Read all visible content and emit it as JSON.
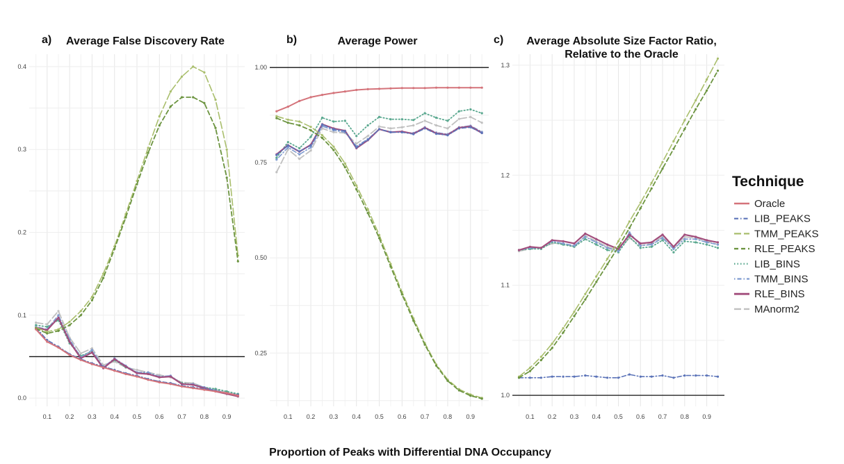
{
  "figure": {
    "x_axis_label": "Proportion of Peaks with Differential DNA Occupancy",
    "legend_title": "Technique"
  },
  "series_styles": [
    {
      "name": "Oracle",
      "color": "#d4737a",
      "dash": "solid",
      "width": 2.0
    },
    {
      "name": "LIB_PEAKS",
      "color": "#5b73b8",
      "dash": "dashdot",
      "width": 1.6
    },
    {
      "name": "TMM_PEAKS",
      "color": "#a9be6c",
      "dash": "longdash",
      "width": 1.6
    },
    {
      "name": "RLE_PEAKS",
      "color": "#6c9440",
      "dash": "dashed",
      "width": 1.8
    },
    {
      "name": "LIB_BINS",
      "color": "#5aa88f",
      "dash": "dotted",
      "width": 1.8
    },
    {
      "name": "TMM_BINS",
      "color": "#7e9ad0",
      "dash": "dotdash",
      "width": 1.6
    },
    {
      "name": "RLE_BINS",
      "color": "#a24d7c",
      "dash": "solid",
      "width": 2.2
    },
    {
      "name": "MAnorm2",
      "color": "#c0c0c0",
      "dash": "longdash",
      "width": 1.8
    }
  ],
  "chart_data": [
    {
      "type": "line",
      "panel_letter": "a)",
      "title": "Average False Discovery Rate",
      "title_lines": [
        "Average False Discovery Rate"
      ],
      "xlabel": "",
      "ylabel": "",
      "x": [
        0.05,
        0.1,
        0.15,
        0.2,
        0.25,
        0.3,
        0.35,
        0.4,
        0.45,
        0.5,
        0.55,
        0.6,
        0.65,
        0.7,
        0.75,
        0.8,
        0.85,
        0.9,
        0.95
      ],
      "xlim": [
        0.02,
        0.98
      ],
      "ylim": [
        -0.01,
        0.415
      ],
      "xticks": [
        0.1,
        0.2,
        0.3,
        0.4,
        0.5,
        0.6,
        0.7,
        0.8,
        0.9
      ],
      "yticks": [
        0.0,
        0.1,
        0.2,
        0.3,
        0.4
      ],
      "ytick_labels": [
        "0.0",
        "0.1",
        "0.2",
        "0.3",
        "0.4"
      ],
      "reference_line": 0.05,
      "grid": true,
      "series": [
        {
          "name": "Oracle",
          "values": [
            0.083,
            0.068,
            0.061,
            0.052,
            0.046,
            0.041,
            0.037,
            0.033,
            0.029,
            0.026,
            0.022,
            0.019,
            0.017,
            0.014,
            0.012,
            0.01,
            0.008,
            0.006,
            0.003
          ]
        },
        {
          "name": "LIB_PEAKS",
          "values": [
            0.085,
            0.07,
            0.062,
            0.053,
            0.047,
            0.042,
            0.038,
            0.034,
            0.03,
            0.027,
            0.023,
            0.02,
            0.018,
            0.015,
            0.013,
            0.011,
            0.009,
            0.006,
            0.004
          ]
        },
        {
          "name": "TMM_PEAKS",
          "values": [
            0.085,
            0.08,
            0.083,
            0.092,
            0.105,
            0.122,
            0.15,
            0.183,
            0.222,
            0.262,
            0.302,
            0.34,
            0.37,
            0.388,
            0.4,
            0.393,
            0.36,
            0.3,
            0.172
          ]
        },
        {
          "name": "RLE_PEAKS",
          "values": [
            0.084,
            0.078,
            0.081,
            0.088,
            0.1,
            0.118,
            0.145,
            0.18,
            0.218,
            0.258,
            0.296,
            0.329,
            0.352,
            0.363,
            0.363,
            0.356,
            0.326,
            0.266,
            0.165
          ]
        },
        {
          "name": "LIB_BINS",
          "values": [
            0.088,
            0.086,
            0.094,
            0.066,
            0.051,
            0.056,
            0.037,
            0.046,
            0.037,
            0.031,
            0.03,
            0.026,
            0.026,
            0.018,
            0.016,
            0.013,
            0.011,
            0.008,
            0.005
          ]
        },
        {
          "name": "TMM_BINS",
          "values": [
            0.086,
            0.083,
            0.1,
            0.071,
            0.049,
            0.058,
            0.037,
            0.048,
            0.039,
            0.031,
            0.031,
            0.026,
            0.027,
            0.017,
            0.017,
            0.013,
            0.009,
            0.006,
            0.003
          ]
        },
        {
          "name": "RLE_BINS",
          "values": [
            0.085,
            0.082,
            0.097,
            0.068,
            0.048,
            0.055,
            0.036,
            0.047,
            0.038,
            0.03,
            0.029,
            0.025,
            0.026,
            0.017,
            0.016,
            0.012,
            0.008,
            0.005,
            0.002
          ]
        },
        {
          "name": "MAnorm2",
          "values": [
            0.091,
            0.089,
            0.105,
            0.073,
            0.054,
            0.06,
            0.04,
            0.044,
            0.037,
            0.034,
            0.031,
            0.028,
            0.025,
            0.019,
            0.018,
            0.013,
            0.01,
            0.007,
            0.004
          ]
        }
      ]
    },
    {
      "type": "line",
      "panel_letter": "b)",
      "title": "Average Power",
      "title_lines": [
        "Average Power"
      ],
      "xlabel": "",
      "ylabel": "",
      "x": [
        0.05,
        0.1,
        0.15,
        0.2,
        0.25,
        0.3,
        0.35,
        0.4,
        0.45,
        0.5,
        0.55,
        0.6,
        0.65,
        0.7,
        0.75,
        0.8,
        0.85,
        0.9,
        0.95
      ],
      "xlim": [
        0.02,
        0.98
      ],
      "ylim": [
        0.11,
        1.035
      ],
      "xticks": [
        0.1,
        0.2,
        0.3,
        0.4,
        0.5,
        0.6,
        0.7,
        0.8,
        0.9
      ],
      "yticks": [
        0.25,
        0.5,
        0.75,
        1.0
      ],
      "ytick_labels": [
        "0.25",
        "0.50",
        "0.75",
        "1.00"
      ],
      "reference_line": 1.0,
      "grid": true,
      "series": [
        {
          "name": "Oracle",
          "values": [
            0.885,
            0.897,
            0.912,
            0.922,
            0.928,
            0.933,
            0.937,
            0.941,
            0.943,
            0.944,
            0.945,
            0.946,
            0.946,
            0.946,
            0.947,
            0.947,
            0.947,
            0.947,
            0.947
          ]
        },
        {
          "name": "LIB_PEAKS",
          "values": [
            0.77,
            0.795,
            0.78,
            0.795,
            0.85,
            0.838,
            0.833,
            0.79,
            0.81,
            0.838,
            0.83,
            0.83,
            0.825,
            0.84,
            0.826,
            0.822,
            0.84,
            0.843,
            0.828
          ]
        },
        {
          "name": "TMM_PEAKS",
          "values": [
            0.872,
            0.863,
            0.858,
            0.844,
            0.822,
            0.792,
            0.748,
            0.69,
            0.628,
            0.56,
            0.484,
            0.41,
            0.341,
            0.276,
            0.22,
            0.18,
            0.155,
            0.141,
            0.132
          ]
        },
        {
          "name": "RLE_PEAKS",
          "values": [
            0.867,
            0.855,
            0.848,
            0.835,
            0.815,
            0.783,
            0.738,
            0.68,
            0.618,
            0.552,
            0.477,
            0.404,
            0.335,
            0.272,
            0.217,
            0.177,
            0.152,
            0.138,
            0.13
          ]
        },
        {
          "name": "LIB_BINS",
          "values": [
            0.763,
            0.804,
            0.788,
            0.818,
            0.868,
            0.858,
            0.86,
            0.82,
            0.848,
            0.87,
            0.864,
            0.864,
            0.862,
            0.88,
            0.868,
            0.86,
            0.885,
            0.89,
            0.88
          ]
        },
        {
          "name": "TMM_BINS",
          "values": [
            0.758,
            0.79,
            0.772,
            0.79,
            0.846,
            0.835,
            0.83,
            0.793,
            0.812,
            0.838,
            0.831,
            0.83,
            0.828,
            0.843,
            0.829,
            0.825,
            0.843,
            0.847,
            0.831
          ]
        },
        {
          "name": "RLE_BINS",
          "values": [
            0.772,
            0.796,
            0.779,
            0.797,
            0.851,
            0.84,
            0.834,
            0.788,
            0.809,
            0.838,
            0.83,
            0.832,
            0.826,
            0.842,
            0.827,
            0.823,
            0.842,
            0.845,
            0.828
          ]
        },
        {
          "name": "MAnorm2",
          "values": [
            0.725,
            0.785,
            0.76,
            0.782,
            0.84,
            0.83,
            0.828,
            0.8,
            0.82,
            0.845,
            0.84,
            0.843,
            0.848,
            0.86,
            0.848,
            0.84,
            0.865,
            0.87,
            0.855
          ]
        }
      ]
    },
    {
      "type": "line",
      "panel_letter": "c)",
      "title": "Average Absolute Size Factor Ratio, Relative to the Oracle",
      "title_lines": [
        "Average Absolute Size Factor Ratio,",
        "Relative to the Oracle"
      ],
      "xlabel": "",
      "ylabel": "",
      "x": [
        0.05,
        0.1,
        0.15,
        0.2,
        0.25,
        0.3,
        0.35,
        0.4,
        0.45,
        0.5,
        0.55,
        0.6,
        0.65,
        0.7,
        0.75,
        0.8,
        0.85,
        0.9,
        0.95
      ],
      "xlim": [
        0.02,
        0.98
      ],
      "ylim": [
        0.99,
        1.31
      ],
      "xticks": [
        0.1,
        0.2,
        0.3,
        0.4,
        0.5,
        0.6,
        0.7,
        0.8,
        0.9
      ],
      "yticks": [
        1.0,
        1.1,
        1.2,
        1.3
      ],
      "ytick_labels": [
        "1.0",
        "1.1",
        "1.2",
        "1.3"
      ],
      "reference_line": 1.0,
      "grid": true,
      "series": [
        {
          "name": "LIB_PEAKS",
          "values": [
            1.016,
            1.016,
            1.016,
            1.017,
            1.017,
            1.017,
            1.018,
            1.017,
            1.016,
            1.016,
            1.019,
            1.017,
            1.017,
            1.018,
            1.016,
            1.018,
            1.018,
            1.018,
            1.017
          ]
        },
        {
          "name": "TMM_PEAKS",
          "values": [
            1.017,
            1.025,
            1.035,
            1.047,
            1.061,
            1.076,
            1.092,
            1.108,
            1.124,
            1.14,
            1.158,
            1.175,
            1.193,
            1.212,
            1.231,
            1.25,
            1.268,
            1.287,
            1.306
          ]
        },
        {
          "name": "RLE_PEAKS",
          "values": [
            1.016,
            1.022,
            1.032,
            1.043,
            1.057,
            1.072,
            1.087,
            1.103,
            1.119,
            1.135,
            1.152,
            1.17,
            1.188,
            1.206,
            1.224,
            1.242,
            1.26,
            1.277,
            1.295
          ]
        },
        {
          "name": "LIB_BINS",
          "values": [
            1.132,
            1.133,
            1.133,
            1.139,
            1.137,
            1.135,
            1.142,
            1.137,
            1.132,
            1.13,
            1.144,
            1.134,
            1.135,
            1.141,
            1.13,
            1.14,
            1.139,
            1.137,
            1.134
          ]
        },
        {
          "name": "TMM_BINS",
          "values": [
            1.132,
            1.134,
            1.134,
            1.14,
            1.138,
            1.136,
            1.144,
            1.139,
            1.134,
            1.131,
            1.148,
            1.136,
            1.137,
            1.143,
            1.133,
            1.142,
            1.142,
            1.139,
            1.137
          ]
        },
        {
          "name": "RLE_BINS",
          "values": [
            1.132,
            1.135,
            1.134,
            1.141,
            1.14,
            1.138,
            1.147,
            1.142,
            1.137,
            1.133,
            1.146,
            1.138,
            1.139,
            1.146,
            1.135,
            1.146,
            1.144,
            1.141,
            1.139
          ]
        },
        {
          "name": "MAnorm2",
          "values": [
            1.131,
            1.133,
            1.134,
            1.138,
            1.138,
            1.135,
            1.145,
            1.14,
            1.135,
            1.132,
            1.143,
            1.136,
            1.138,
            1.144,
            1.134,
            1.144,
            1.143,
            1.14,
            1.137
          ]
        }
      ]
    }
  ]
}
